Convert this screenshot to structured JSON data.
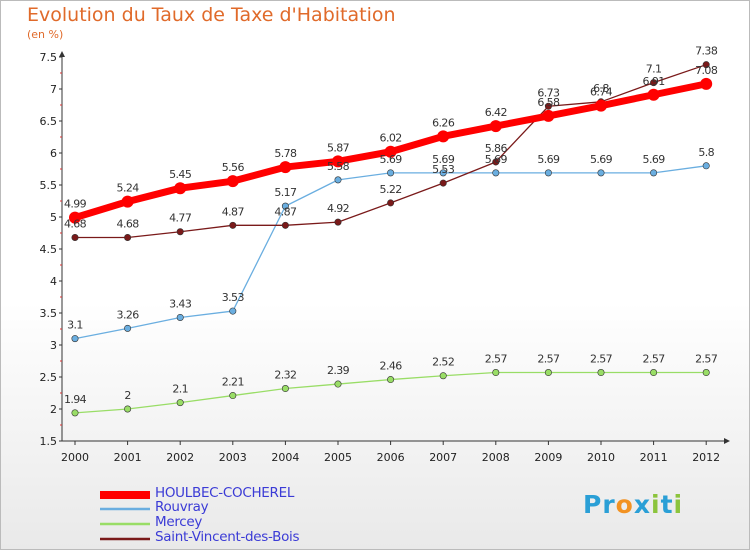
{
  "title": "Evolution du Taux de Taxe d'Habitation",
  "subtitle": "(en %)",
  "logo": {
    "letters": [
      "P",
      "r",
      "o",
      "x",
      "i",
      "t",
      "i"
    ],
    "colors": [
      "#2a9fd6",
      "#2a9fd6",
      "#f29222",
      "#2a9fd6",
      "#8cc43c",
      "#2a9fd6",
      "#8cc43c"
    ]
  },
  "chart_data": {
    "type": "line",
    "x": [
      "2000",
      "2001",
      "2002",
      "2003",
      "2004",
      "2005",
      "2006",
      "2007",
      "2008",
      "2009",
      "2010",
      "2011",
      "2012"
    ],
    "ylim": [
      1.5,
      7.5
    ],
    "yticks": [
      "1.5",
      "2",
      "2.5",
      "3",
      "3.5",
      "4",
      "4.5",
      "5",
      "5.5",
      "6",
      "6.5",
      "7",
      "7.5"
    ],
    "grid": false,
    "legend_position": "bottom-left",
    "series": [
      {
        "name": "HOULBEC-COCHEREL",
        "color": "#ff0000",
        "values": [
          4.99,
          5.24,
          5.45,
          5.56,
          5.78,
          5.87,
          6.02,
          6.26,
          6.42,
          6.58,
          6.74,
          6.91,
          7.08
        ],
        "labels": [
          "4.99",
          "5.24",
          "5.45",
          "5.56",
          "5.78",
          "5.87",
          "6.02",
          "6.26",
          "6.42",
          "6.58",
          "6.74",
          "6.91",
          "7.08"
        ]
      },
      {
        "name": "Rouvray",
        "color": "#6aaee0",
        "values": [
          3.1,
          3.26,
          3.43,
          3.53,
          5.17,
          5.58,
          5.69,
          5.69,
          5.69,
          5.69,
          5.69,
          5.69,
          5.8
        ],
        "labels": [
          "3.1",
          "3.26",
          "3.43",
          "3.53",
          "5.17",
          "5.58",
          "5.69",
          "5.69",
          "5.69",
          "5.69",
          "5.69",
          "5.69",
          "5.8"
        ]
      },
      {
        "name": "Mercey",
        "color": "#99dd66",
        "values": [
          1.94,
          2,
          2.1,
          2.21,
          2.32,
          2.39,
          2.46,
          2.52,
          2.57,
          2.57,
          2.57,
          2.57,
          2.57
        ],
        "labels": [
          "1.94",
          "2",
          "2.1",
          "2.21",
          "2.32",
          "2.39",
          "2.46",
          "2.52",
          "2.57",
          "2.57",
          "2.57",
          "2.57",
          "2.57"
        ]
      },
      {
        "name": "Saint-Vincent-des-Bois",
        "color": "#7a1a1a",
        "values": [
          4.68,
          4.68,
          4.77,
          4.87,
          4.87,
          4.92,
          5.22,
          5.53,
          5.86,
          6.73,
          6.8,
          7.1,
          7.38
        ],
        "labels": [
          "4.68",
          "4.68",
          "4.77",
          "4.87",
          "4.87",
          "4.92",
          "5.22",
          "5.53",
          "5.86",
          "6.73",
          "6.8",
          "7.1",
          "7.38"
        ]
      }
    ]
  }
}
